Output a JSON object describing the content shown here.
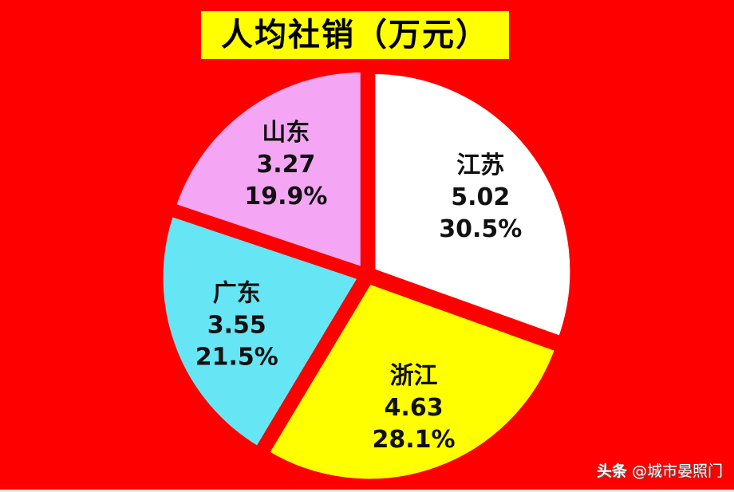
{
  "chart_data": {
    "type": "pie",
    "title": "人均社销（万元）",
    "start_angle": "12 o'clock, clockwise",
    "exploded": true,
    "slices": [
      {
        "label": "江苏",
        "value": 5.02,
        "percent": "30.5%",
        "color": "#ffffff"
      },
      {
        "label": "浙江",
        "value": 4.63,
        "percent": "28.1%",
        "color": "#ffff00"
      },
      {
        "label": "广东",
        "value": 3.55,
        "percent": "21.5%",
        "color": "#66e5f5"
      },
      {
        "label": "山东",
        "value": 3.27,
        "percent": "19.9%",
        "color": "#f4a6f4"
      }
    ],
    "background": "#ff0000",
    "title_background": "#ffff00"
  },
  "watermark": {
    "brand": "头条",
    "handle": "@城市晏照门"
  }
}
